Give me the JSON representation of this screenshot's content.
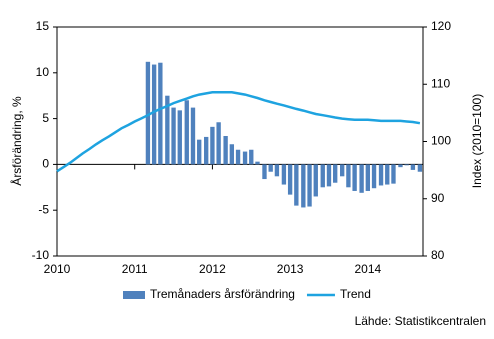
{
  "chart_data": {
    "type": "bar-line",
    "y_label": "Årsförändring, %",
    "y2_label": "Index  (2010=100)",
    "source": "Lähde:  Statistikcentralen",
    "x": [
      2010,
      2010.08,
      2010.17,
      2010.25,
      2010.33,
      2010.42,
      2010.5,
      2010.58,
      2010.67,
      2010.75,
      2010.83,
      2010.92,
      2011,
      2011.08,
      2011.17,
      2011.25,
      2011.33,
      2011.42,
      2011.5,
      2011.58,
      2011.67,
      2011.75,
      2011.83,
      2011.92,
      2012,
      2012.08,
      2012.17,
      2012.25,
      2012.33,
      2012.42,
      2012.5,
      2012.58,
      2012.67,
      2012.75,
      2012.83,
      2012.92,
      2013,
      2013.08,
      2013.17,
      2013.25,
      2013.33,
      2013.42,
      2013.5,
      2013.58,
      2013.67,
      2013.75,
      2013.83,
      2013.92,
      2014,
      2014.08,
      2014.17,
      2014.25,
      2014.33,
      2014.42,
      2014.5,
      2014.58,
      2014.67
    ],
    "xlim": [
      2010,
      2014.71
    ],
    "xticks": [
      2010,
      2011,
      2012,
      2013,
      2014
    ],
    "ylim": [
      -10,
      15
    ],
    "yticks": [
      -10,
      -5,
      0,
      5,
      10,
      15
    ],
    "y2lim": [
      80,
      120
    ],
    "y2ticks": [
      80,
      90,
      100,
      110,
      120
    ],
    "legend": "bottom",
    "series": [
      {
        "name": "Tremånaders årsförändring",
        "color": "#4f81bd",
        "kind": "bar",
        "values": [
          null,
          null,
          null,
          null,
          null,
          null,
          null,
          null,
          null,
          null,
          null,
          null,
          null,
          null,
          11.2,
          10.9,
          11.1,
          7.5,
          6.2,
          5.9,
          7.0,
          6.2,
          2.7,
          3.0,
          4.1,
          4.6,
          3.1,
          2.2,
          1.6,
          1.4,
          1.6,
          0.3,
          -1.6,
          -0.8,
          -1.3,
          -2.2,
          -3.3,
          -4.5,
          -4.7,
          -4.6,
          -3.5,
          -2.5,
          -2.4,
          -2.0,
          -1.3,
          -2.5,
          -2.9,
          -3.1,
          -2.9,
          -2.6,
          -2.3,
          -2.2,
          -2.1,
          -0.3,
          -0.1,
          -0.6,
          -0.8
        ]
      },
      {
        "name": "Trend",
        "color": "#1ea3e0",
        "kind": "line",
        "axis": "y2",
        "values": [
          94.8,
          95.5,
          96.3,
          97.1,
          97.9,
          98.7,
          99.5,
          100.2,
          100.9,
          101.6,
          102.3,
          102.9,
          103.5,
          104.0,
          104.6,
          105.2,
          105.7,
          106.2,
          106.7,
          107.1,
          107.5,
          107.9,
          108.2,
          108.4,
          108.6,
          108.6,
          108.6,
          108.6,
          108.4,
          108.2,
          107.9,
          107.6,
          107.2,
          106.9,
          106.6,
          106.3,
          106.0,
          105.7,
          105.4,
          105.1,
          104.8,
          104.6,
          104.4,
          104.2,
          104.0,
          103.9,
          103.8,
          103.8,
          103.8,
          103.7,
          103.6,
          103.6,
          103.6,
          103.6,
          103.5,
          103.4,
          103.2
        ]
      }
    ]
  }
}
